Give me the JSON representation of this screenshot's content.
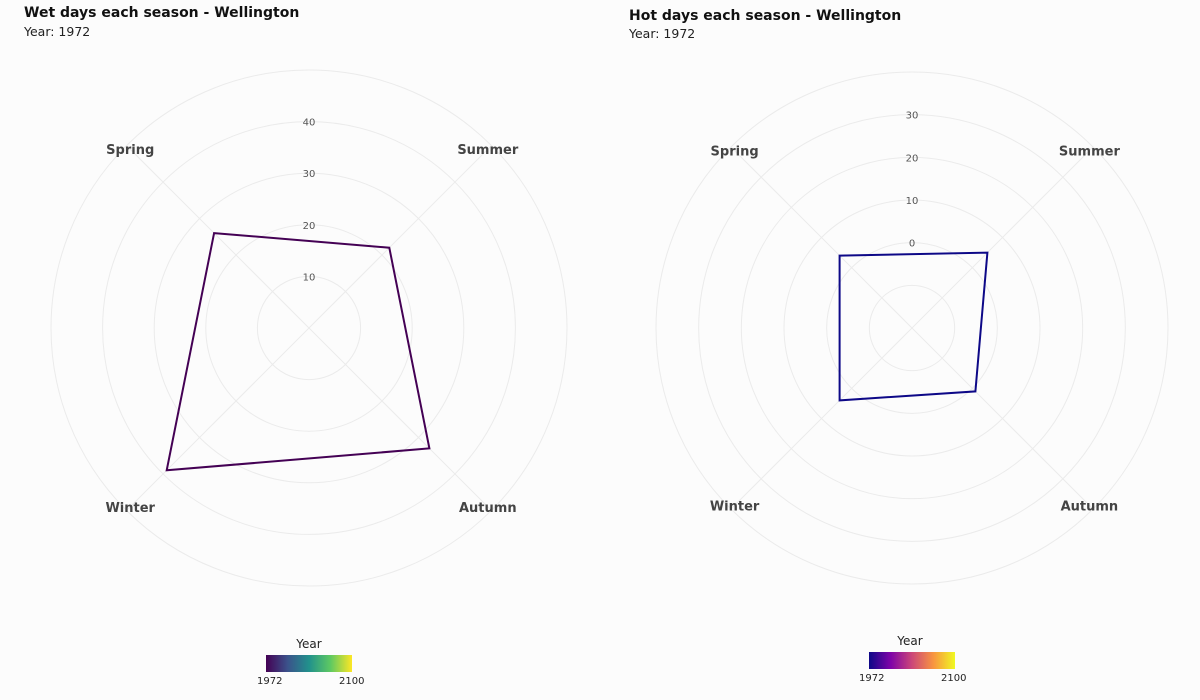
{
  "chart_data": [
    {
      "type": "radar",
      "title": "Wet days each season - Wellington",
      "subtitle": "Year: 1972",
      "categories": [
        "Spring",
        "Summer",
        "Autumn",
        "Winter"
      ],
      "radial_ticks": [
        10,
        20,
        30,
        40
      ],
      "radial_range": [
        0,
        50
      ],
      "grid": true,
      "series": [
        {
          "values": [
            26,
            22,
            33,
            39
          ],
          "color": "#440154"
        }
      ],
      "legend": {
        "title": "Year",
        "min_label": "1972",
        "max_label": "2100",
        "palette": "viridis",
        "position": "bottom"
      }
    },
    {
      "type": "radar",
      "title": "Hot days each season - Wellington",
      "subtitle": "Year: 1972",
      "categories": [
        "Spring",
        "Summer",
        "Autumn",
        "Winter"
      ],
      "radial_ticks": [
        0,
        10,
        20,
        30
      ],
      "radial_range": [
        -20,
        40
      ],
      "grid": true,
      "series": [
        {
          "values": [
            4,
            5,
            1,
            4
          ],
          "color": "#0d0887"
        }
      ],
      "legend": {
        "title": "Year",
        "min_label": "1972",
        "max_label": "2100",
        "palette": "plasma",
        "position": "bottom"
      }
    }
  ]
}
